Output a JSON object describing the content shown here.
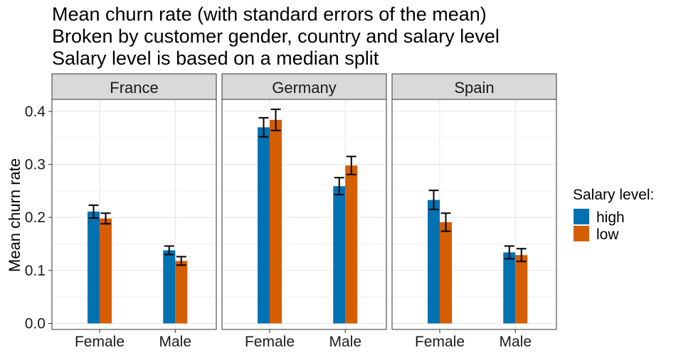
{
  "chart_data": {
    "type": "bar",
    "title": "Mean churn rate (with standard errors of the mean)",
    "subtitle": [
      "Broken by customer gender, country and salary level",
      "Salary level is based on a median split"
    ],
    "xlabel": "",
    "ylabel": "Mean churn rate",
    "ylim": [
      -0.01,
      0.42
    ],
    "yticks": [
      "0.0",
      "0.1",
      "0.2",
      "0.3",
      "0.4"
    ],
    "categories": [
      "Female",
      "Male"
    ],
    "grid": true,
    "legend": {
      "title": "Salary level:",
      "placement": "right",
      "entries": [
        "high",
        "low"
      ]
    },
    "series_colors": {
      "high": "#0072B2",
      "low": "#D55E00"
    },
    "facets": [
      {
        "name": "France",
        "series": [
          {
            "name": "high",
            "values": [
              0.211,
              0.138
            ],
            "se": [
              0.012,
              0.008
            ]
          },
          {
            "name": "low",
            "values": [
              0.198,
              0.118
            ],
            "se": [
              0.01,
              0.008
            ]
          }
        ]
      },
      {
        "name": "Germany",
        "series": [
          {
            "name": "high",
            "values": [
              0.37,
              0.259
            ],
            "se": [
              0.018,
              0.016
            ]
          },
          {
            "name": "low",
            "values": [
              0.384,
              0.298
            ],
            "se": [
              0.02,
              0.017
            ]
          }
        ]
      },
      {
        "name": "Spain",
        "series": [
          {
            "name": "high",
            "values": [
              0.233,
              0.134
            ],
            "se": [
              0.018,
              0.012
            ]
          },
          {
            "name": "low",
            "values": [
              0.191,
              0.129
            ],
            "se": [
              0.017,
              0.012
            ]
          }
        ]
      }
    ]
  }
}
